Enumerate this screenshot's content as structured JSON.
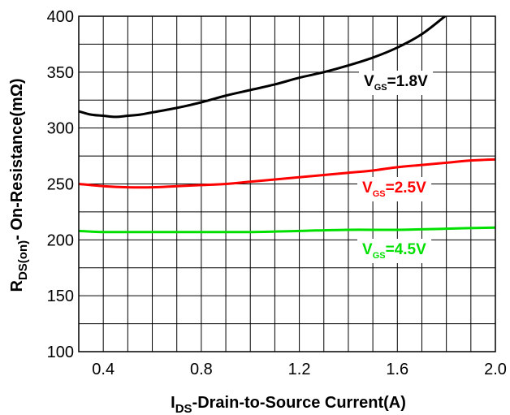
{
  "chart_data": {
    "type": "line",
    "xlim": [
      0.3,
      2.0
    ],
    "ylim": [
      100,
      400
    ],
    "x_major_ticks": [
      0.4,
      0.8,
      1.2,
      1.6,
      2.0
    ],
    "x_tick_labels": [
      "0.4",
      "0.8",
      "1.2",
      "1.6",
      "2.0"
    ],
    "y_major_ticks": [
      100,
      150,
      200,
      250,
      300,
      350,
      400
    ],
    "y_tick_labels": [
      "100",
      "150",
      "200",
      "250",
      "300",
      "350",
      "400"
    ],
    "x_minor_step": 0.1,
    "y_minor_step": 25,
    "grid": true,
    "xlabel": {
      "main": "I",
      "sub": "DS",
      "rest": "-Drain-to-Source Current(A)"
    },
    "ylabel": {
      "main": "R",
      "sub": "DS(on)",
      "rest": "- On-Resistance(mΩ)"
    },
    "series": [
      {
        "name": {
          "main": "V",
          "sub": "GS",
          "rest": "=1.8V"
        },
        "color": "#000000",
        "x": [
          0.3,
          0.35,
          0.4,
          0.45,
          0.5,
          0.55,
          0.6,
          0.7,
          0.8,
          0.9,
          1.0,
          1.1,
          1.2,
          1.3,
          1.4,
          1.5,
          1.6,
          1.7,
          1.8
        ],
        "y": [
          315,
          312,
          311,
          310,
          311,
          312,
          314,
          318,
          323,
          329,
          334,
          339,
          345,
          350,
          356,
          363,
          372,
          384,
          401
        ]
      },
      {
        "name": {
          "main": "V",
          "sub": "GS",
          "rest": "=2.5V"
        },
        "color": "#ff0000",
        "x": [
          0.3,
          0.4,
          0.5,
          0.6,
          0.7,
          0.8,
          0.9,
          1.0,
          1.1,
          1.2,
          1.3,
          1.4,
          1.5,
          1.6,
          1.7,
          1.8,
          1.9,
          2.0
        ],
        "y": [
          250,
          248,
          247,
          247,
          248,
          249,
          250,
          252,
          254,
          256,
          258,
          260,
          262,
          265,
          267,
          269,
          271,
          272
        ]
      },
      {
        "name": {
          "main": "V",
          "sub": "GS",
          "rest": "=4.5V"
        },
        "color": "#00e000",
        "x": [
          0.3,
          0.4,
          0.6,
          0.8,
          1.0,
          1.2,
          1.4,
          1.6,
          1.8,
          2.0
        ],
        "y": [
          208,
          207,
          207,
          207,
          207,
          208,
          209,
          209,
          210,
          211
        ]
      }
    ]
  }
}
